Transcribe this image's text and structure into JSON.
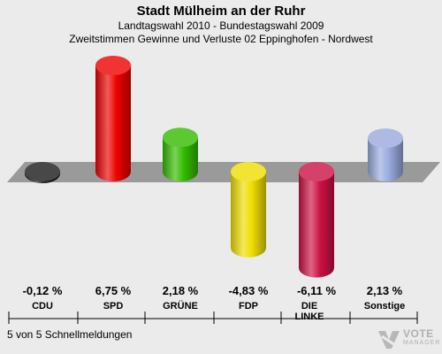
{
  "header": {
    "title": "Stadt Mülheim an der Ruhr",
    "subtitle1": "Landtagswahl 2010 - Bundestagswahl 2009",
    "subtitle2": "Zweitstimmen Gewinne und Verluste 02 Eppinghofen - Nordwest"
  },
  "footer": {
    "text": "5 von 5 Schnellmeldungen"
  },
  "logo": {
    "line1": "VOTE",
    "line2": "MANAGER"
  },
  "chart_data": {
    "type": "bar",
    "title": "Stadt Mülheim an der Ruhr",
    "categories": [
      "CDU",
      "SPD",
      "GRÜNE",
      "FDP",
      "DIE LINKE",
      "Sonstige"
    ],
    "values": [
      -0.12,
      6.75,
      2.18,
      -4.83,
      -6.11,
      2.13
    ],
    "value_labels": [
      "-0,12 %",
      "6,75 %",
      "2,18 %",
      "-4,83 %",
      "-6,11 %",
      "2,13 %"
    ],
    "colors": [
      "#1a1a1a",
      "#ee0000",
      "#33bb00",
      "#eedd00",
      "#cc1144",
      "#99aadd"
    ],
    "grid": false,
    "legend": "none"
  }
}
